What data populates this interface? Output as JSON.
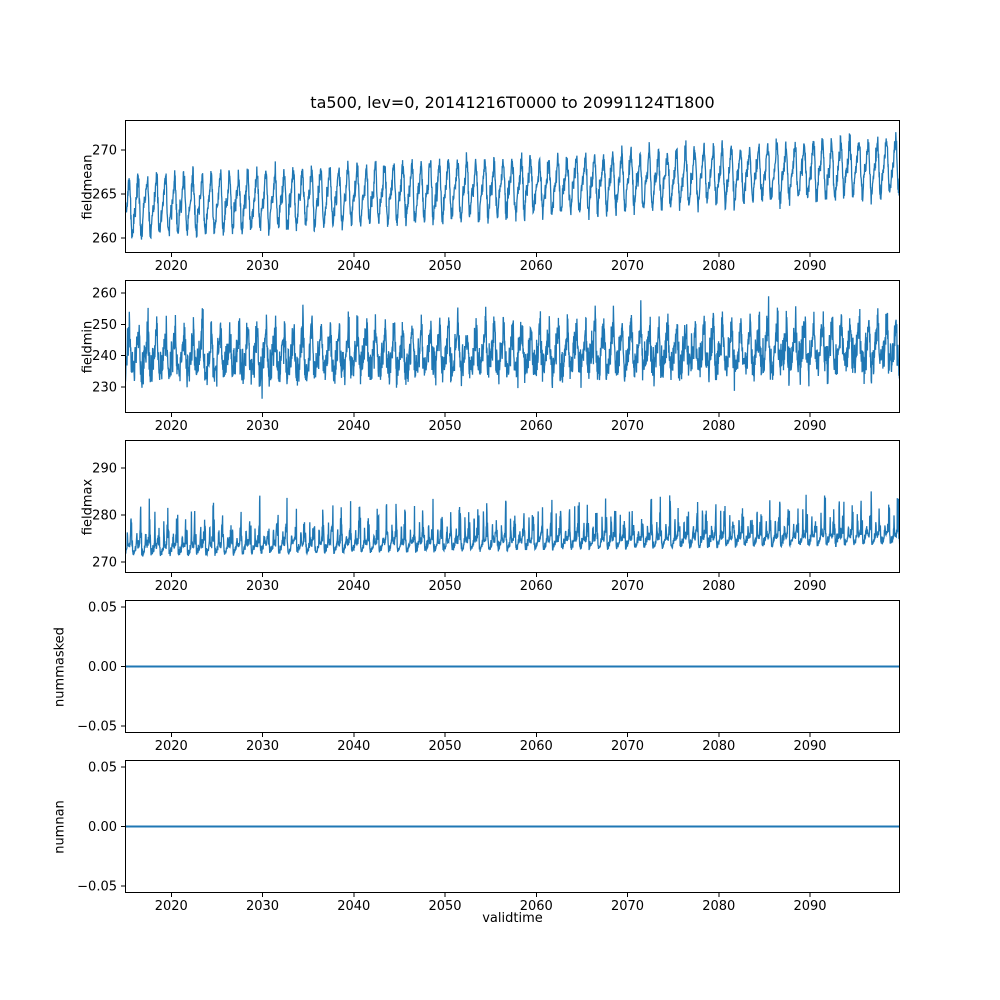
{
  "title": "ta500, lev=0, 20141216T0000 to 20991124T1800",
  "chart_data": {
    "type": "line",
    "title": "ta500, lev=0, 20141216T0000 to 20991124T1800",
    "xlabel": "validtime",
    "x_range": [
      2014.93,
      2099.86
    ],
    "x_ticks": [
      2020,
      2030,
      2040,
      2050,
      2060,
      2070,
      2080,
      2090
    ],
    "x_tick_labels": [
      "2020",
      "2030",
      "2040",
      "2050",
      "2060",
      "2070",
      "2080",
      "2090"
    ],
    "line_color": "#1f77b4",
    "background": "#ffffff",
    "grid": false,
    "legend": "none",
    "panels": [
      {
        "ylabel": "fieldmean",
        "ylim": [
          258.3,
          273.4
        ],
        "yticks": [
          260,
          265,
          270
        ],
        "ytick_labels": [
          "260",
          "265",
          "270"
        ],
        "series": {
          "type": "noisy-seasonal",
          "seed": 42,
          "base": 263.4,
          "trend_per_year": 0.0555,
          "ref_year": 2015,
          "annual_amp": 2.55,
          "semiannual_amp": 1.0,
          "noise_sd": 0.55,
          "pos_spike": 0,
          "neg_spike": 0,
          "rare_spike": 0,
          "envelope_summary": {
            "start_min": 259,
            "start_max": 268,
            "end_min": 262.5,
            "end_max": 273
          }
        }
      },
      {
        "ylabel": "fieldmin",
        "ylim": [
          221.7,
          264.2
        ],
        "yticks": [
          230,
          240,
          250,
          260
        ],
        "ytick_labels": [
          "230",
          "240",
          "250",
          "260"
        ],
        "series": {
          "type": "noisy-seasonal",
          "seed": 7,
          "base": 239.9,
          "trend_per_year": 0.028,
          "ref_year": 2015,
          "annual_amp": 4.2,
          "semiannual_amp": 1.6,
          "noise_sd": 2.9,
          "pos_spike": 6.5,
          "neg_spike": 6.0,
          "rare_spike": 5.5,
          "envelope_summary": {
            "start_min": 226,
            "start_max": 256,
            "end_min": 230,
            "end_max": 261
          }
        }
      },
      {
        "ylabel": "fieldmax",
        "ylim": [
          267.7,
          296.0
        ],
        "yticks": [
          270,
          280,
          290
        ],
        "ytick_labels": [
          "270",
          "280",
          "290"
        ],
        "series": {
          "type": "spiky",
          "seed": 99,
          "base": 271.9,
          "trend_per_year": 0.03,
          "ref_year": 2015,
          "annual_amp": 0.9,
          "semiannual_amp": 0,
          "noise_sd": 0.85,
          "spike_max": 17,
          "envelope_summary": {
            "start_min": 269.5,
            "start_max": 289,
            "end_min": 272,
            "end_max": 295
          }
        }
      },
      {
        "ylabel": "nummasked",
        "ylim": [
          -0.0558,
          0.0558
        ],
        "yticks": [
          -0.05,
          0.0,
          0.05
        ],
        "ytick_labels": [
          "−0.05",
          "0.00",
          "0.05"
        ],
        "series": {
          "type": "constant",
          "value": 0.0
        }
      },
      {
        "ylabel": "numnan",
        "ylim": [
          -0.0558,
          0.0558
        ],
        "yticks": [
          -0.05,
          0.0,
          0.05
        ],
        "ytick_labels": [
          "−0.05",
          "0.00",
          "0.05"
        ],
        "series": {
          "type": "constant",
          "value": 0.0
        }
      }
    ]
  }
}
